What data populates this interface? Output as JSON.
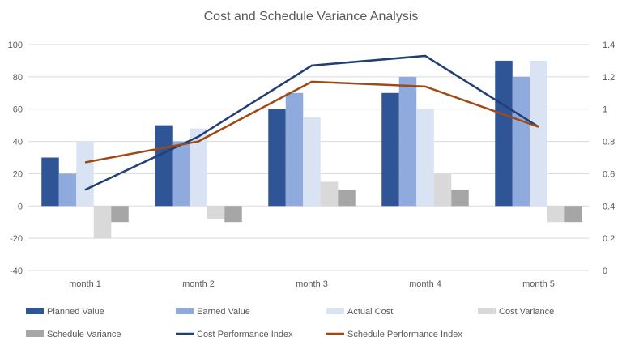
{
  "chart_data": {
    "type": "bar",
    "title": "Cost and Schedule Variance Analysis",
    "categories": [
      "month 1",
      "month 2",
      "month 3",
      "month 4",
      "month 5"
    ],
    "y_axis": {
      "range": [
        -40,
        100
      ],
      "ticks": [
        "-40",
        "-20",
        "0",
        "20",
        "40",
        "60",
        "80",
        "100"
      ]
    },
    "y2_axis": {
      "range": [
        0,
        1.4
      ],
      "ticks": [
        "0",
        "0.2",
        "0.4",
        "0.6",
        "0.8",
        "1",
        "1.2",
        "1.4"
      ]
    },
    "grid": true,
    "legend_placement": "bottom",
    "series": [
      {
        "name": "Planned Value",
        "kind": "bar",
        "axis": "primary",
        "color": "#2F5597",
        "values": [
          30,
          50,
          60,
          70,
          90
        ]
      },
      {
        "name": "Earned Value",
        "kind": "bar",
        "axis": "primary",
        "color": "#8FAADC",
        "values": [
          20,
          40,
          70,
          80,
          80
        ]
      },
      {
        "name": "Actual Cost",
        "kind": "bar",
        "axis": "primary",
        "color": "#DAE3F3",
        "values": [
          40,
          48,
          55,
          60,
          90
        ]
      },
      {
        "name": "Cost Variance",
        "kind": "bar",
        "axis": "primary",
        "color": "#D9D9D9",
        "values": [
          -20,
          -8,
          15,
          20,
          -10
        ]
      },
      {
        "name": "Schedule Variance",
        "kind": "bar",
        "axis": "primary",
        "color": "#A6A6A6",
        "values": [
          -10,
          -10,
          10,
          10,
          -10
        ]
      },
      {
        "name": "Cost Performance Index",
        "kind": "line",
        "axis": "secondary",
        "color": "#203F73",
        "values": [
          0.5,
          0.83,
          1.27,
          1.33,
          0.89
        ]
      },
      {
        "name": "Schedule Performance Index",
        "kind": "line",
        "axis": "secondary",
        "color": "#9E4A16",
        "values": [
          0.67,
          0.8,
          1.17,
          1.14,
          0.89
        ]
      }
    ]
  }
}
